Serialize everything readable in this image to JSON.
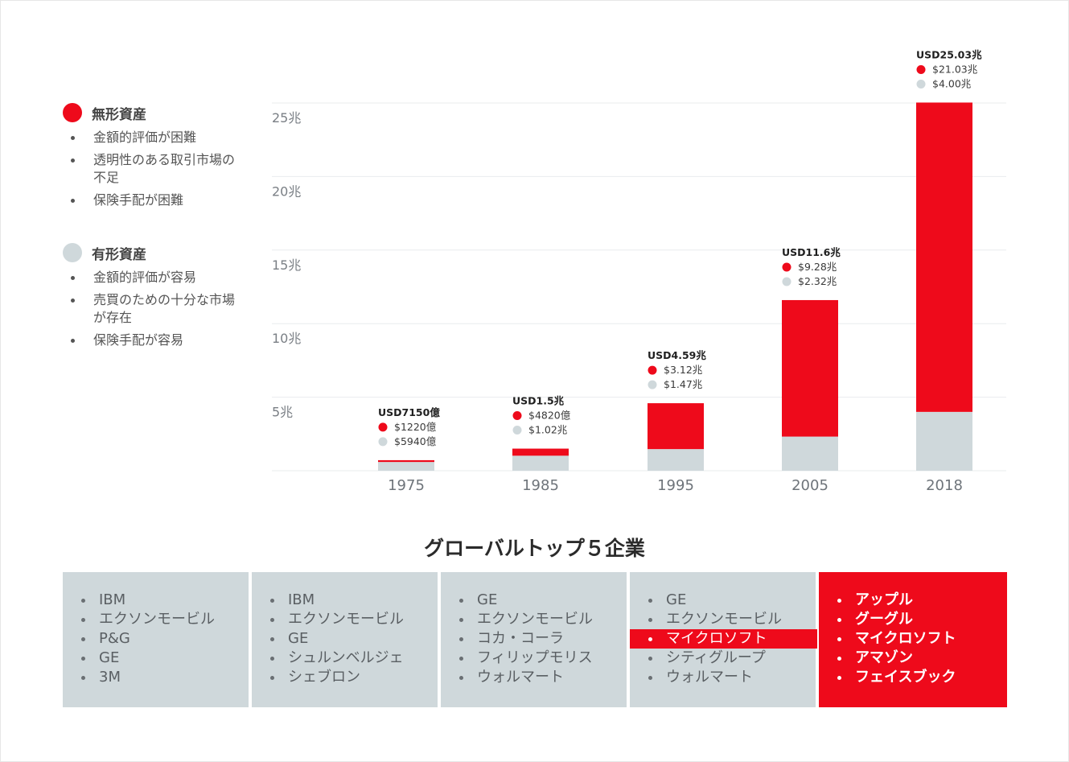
{
  "colors": {
    "intangible": "#ee0a1b",
    "tangible": "#cfd8db",
    "grid": "#e9ecee"
  },
  "legend": [
    {
      "name": "intangible",
      "title": "無形資産",
      "color": "#ee0a1b",
      "items": [
        "金額的評価が困難",
        "透明性のある取引市場の不足",
        "保険手配が困難"
      ]
    },
    {
      "name": "tangible",
      "title": "有形資産",
      "color": "#cfd8db",
      "items": [
        "金額的評価が容易",
        "売買のための十分な市場が存在",
        "保険手配が容易"
      ]
    }
  ],
  "chart_data": {
    "type": "bar",
    "stacked": true,
    "categories": [
      "1975",
      "1985",
      "1995",
      "2005",
      "2018"
    ],
    "series": [
      {
        "name": "有形資産",
        "values": [
          0.594,
          1.02,
          1.47,
          2.32,
          4.0
        ]
      },
      {
        "name": "無形資産",
        "values": [
          0.122,
          0.482,
          3.12,
          9.28,
          21.03
        ]
      }
    ],
    "ylim": [
      0,
      25
    ],
    "yticks": [
      5,
      10,
      15,
      20,
      25
    ],
    "ytick_labels": [
      "5兆",
      "10兆",
      "15兆",
      "20兆",
      "25兆"
    ],
    "grid": true,
    "annotations": [
      {
        "total": "USD7150億",
        "intangible": "$1220億",
        "tangible": "$5940億"
      },
      {
        "total": "USD1.5兆",
        "intangible": "$4820億",
        "tangible": "$1.02兆"
      },
      {
        "total": "USD4.59兆",
        "intangible": "$3.12兆",
        "tangible": "$1.47兆"
      },
      {
        "total": "USD11.6兆",
        "intangible": "$9.28兆",
        "tangible": "$2.32兆"
      },
      {
        "total": "USD25.03兆",
        "intangible": "$21.03兆",
        "tangible": "$4.00兆"
      }
    ]
  },
  "companies": {
    "title": "グローバルトップ５企業",
    "columns": [
      {
        "items": [
          "IBM",
          "エクソンモービル",
          "P&G",
          "GE",
          "3M"
        ],
        "highlight": -1
      },
      {
        "items": [
          "IBM",
          "エクソンモービル",
          "GE",
          "シュルンベルジェ",
          "シェブロン"
        ],
        "highlight": -1
      },
      {
        "items": [
          "GE",
          "エクソンモービル",
          "コカ・コーラ",
          "フィリップモリス",
          "ウォルマート"
        ],
        "highlight": -1
      },
      {
        "items": [
          "GE",
          "エクソンモービル",
          "マイクロソフト",
          "シティグループ",
          "ウォルマート"
        ],
        "highlight": 2
      },
      {
        "items": [
          "アップル",
          "グーグル",
          "マイクロソフト",
          "アマゾン",
          "フェイスブック"
        ],
        "highlight": -1
      }
    ]
  }
}
